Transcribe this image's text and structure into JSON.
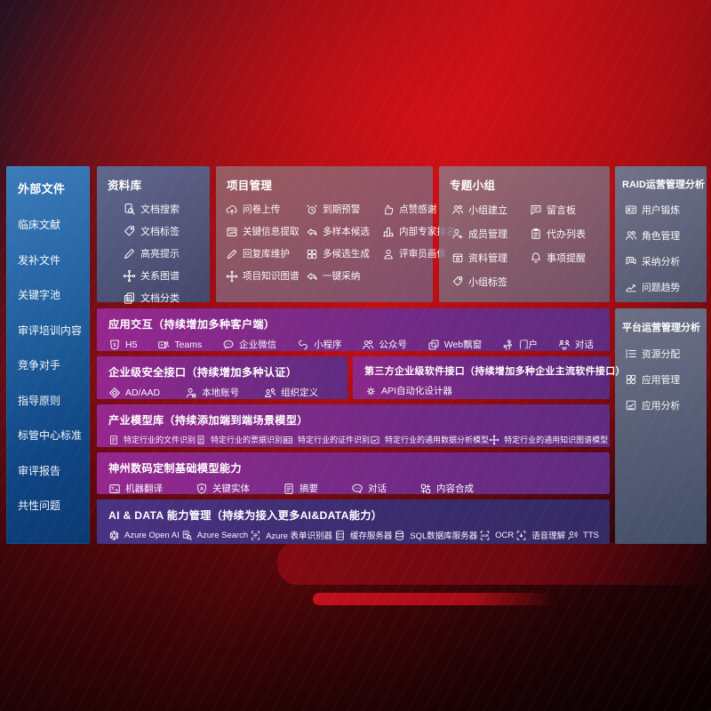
{
  "colors": {
    "background_red": "#b80f15",
    "sidebar_blue": "#1b5a9e",
    "panel_slate": "#5d6c80",
    "panel_purple": "#7c2a88",
    "panel_indigo": "#3b2c6f"
  },
  "sidebar": {
    "title": "外部文件",
    "items": [
      {
        "label": "临床文献"
      },
      {
        "label": "发补文件"
      },
      {
        "label": "关键字池"
      },
      {
        "label": "审评培训内容"
      },
      {
        "label": "竞争对手"
      },
      {
        "label": "指导原则"
      },
      {
        "label": "标管中心标准"
      },
      {
        "label": "审评报告"
      },
      {
        "label": "共性问题"
      }
    ]
  },
  "library": {
    "title": "资料库",
    "items": [
      {
        "label": "文档搜索",
        "icon": "doc-search"
      },
      {
        "label": "文档标签",
        "icon": "tag"
      },
      {
        "label": "高亮提示",
        "icon": "pen"
      },
      {
        "label": "关系图谱",
        "icon": "graph"
      },
      {
        "label": "文档分类",
        "icon": "docs"
      }
    ]
  },
  "project": {
    "title": "项目管理",
    "items": [
      {
        "label": "问卷上传",
        "icon": "cloud-upload"
      },
      {
        "label": "到期预警",
        "icon": "alarm"
      },
      {
        "label": "点赞感谢",
        "icon": "thumb"
      },
      {
        "label": "关键信息提取",
        "icon": "image-doc"
      },
      {
        "label": "多样本候选",
        "icon": "reply"
      },
      {
        "label": "内部专家排名",
        "icon": "rank"
      },
      {
        "label": "回复库维护",
        "icon": "pen"
      },
      {
        "label": "多候选生成",
        "icon": "grid"
      },
      {
        "label": "评审员画像",
        "icon": "person"
      },
      {
        "label": "项目知识图谱",
        "icon": "graph"
      },
      {
        "label": "一键采纳",
        "icon": "reply"
      }
    ]
  },
  "topic_group": {
    "title": "专题小组",
    "items": [
      {
        "label": "小组建立",
        "icon": "people"
      },
      {
        "label": "留言板",
        "icon": "bbs"
      },
      {
        "label": "成员管理",
        "icon": "person-add"
      },
      {
        "label": "代办列表",
        "icon": "clipboard"
      },
      {
        "label": "资料管理",
        "icon": "archive"
      },
      {
        "label": "事项提醒",
        "icon": "bell"
      },
      {
        "label": "小组标签",
        "icon": "tag"
      }
    ]
  },
  "raid": {
    "title": "RAID运营管理分析",
    "items": [
      {
        "label": "用户锻炼",
        "icon": "id-card"
      },
      {
        "label": "角色管理",
        "icon": "people"
      },
      {
        "label": "采纳分析",
        "icon": "chat-stats"
      },
      {
        "label": "问题趋势",
        "icon": "trend"
      }
    ]
  },
  "platform": {
    "title": "平台运营管理分析",
    "items": [
      {
        "label": "资源分配",
        "icon": "list"
      },
      {
        "label": "应用管理",
        "icon": "apps"
      },
      {
        "label": "应用分析",
        "icon": "chart-doc"
      }
    ]
  },
  "app_interaction": {
    "title": "应用交互（持续增加多种客户端）",
    "items": [
      {
        "label": "H5",
        "icon": "h5"
      },
      {
        "label": "Teams",
        "icon": "teams"
      },
      {
        "label": "企业微信",
        "icon": "wechat"
      },
      {
        "label": "小程序",
        "icon": "mini"
      },
      {
        "label": "公众号",
        "icon": "people"
      },
      {
        "label": "Web飘窗",
        "icon": "window"
      },
      {
        "label": "门户",
        "icon": "portal"
      },
      {
        "label": "对话",
        "icon": "dialog"
      }
    ]
  },
  "security": {
    "title": "企业级安全接口（持续增加多种认证）",
    "items": [
      {
        "label": "AD/AAD",
        "icon": "diamond"
      },
      {
        "label": "本地账号",
        "icon": "badge-person"
      },
      {
        "label": "组织定义",
        "icon": "org"
      }
    ]
  },
  "third_party": {
    "title": "第三方企业级软件接口（持续增加多种企业主流软件接口）",
    "items": [
      {
        "label": "API自动化设计器",
        "icon": "gear-api"
      }
    ]
  },
  "industry_models": {
    "title": "产业模型库（持续添加端到端场景模型）",
    "items": [
      {
        "label": "特定行业的文件识别",
        "icon": "summary"
      },
      {
        "label": "特定行业的票据识别",
        "icon": "receipt"
      },
      {
        "label": "特定行业的证件识别",
        "icon": "id-card"
      },
      {
        "label": "特定行业的通用数据分析模型",
        "icon": "data-model"
      },
      {
        "label": "特定行业的通用知识图谱模型",
        "icon": "graph"
      }
    ]
  },
  "digital_china": {
    "title": "神州数码定制基础模型能力",
    "items": [
      {
        "label": "机器翻译",
        "icon": "translate"
      },
      {
        "label": "关键实体",
        "icon": "shield-a"
      },
      {
        "label": "摘要",
        "icon": "summary"
      },
      {
        "label": "对话",
        "icon": "chat"
      },
      {
        "label": "内容合成",
        "icon": "compose"
      }
    ]
  },
  "ai_data": {
    "title": "AI & DATA 能力管理（持续为接入更多AI&DATA能力）",
    "items": [
      {
        "label": "Azure Open AI",
        "icon": "openai"
      },
      {
        "label": "Azure Search",
        "icon": "azure-search"
      },
      {
        "label": "Azure 表单识别器",
        "icon": "form-recognizer"
      },
      {
        "label": "缓存服务器",
        "icon": "server"
      },
      {
        "label": "SQL数据库服务器",
        "icon": "database"
      },
      {
        "label": "OCR",
        "icon": "ocr"
      },
      {
        "label": "语音理解",
        "icon": "speech"
      },
      {
        "label": "TTS",
        "icon": "tts"
      }
    ]
  }
}
